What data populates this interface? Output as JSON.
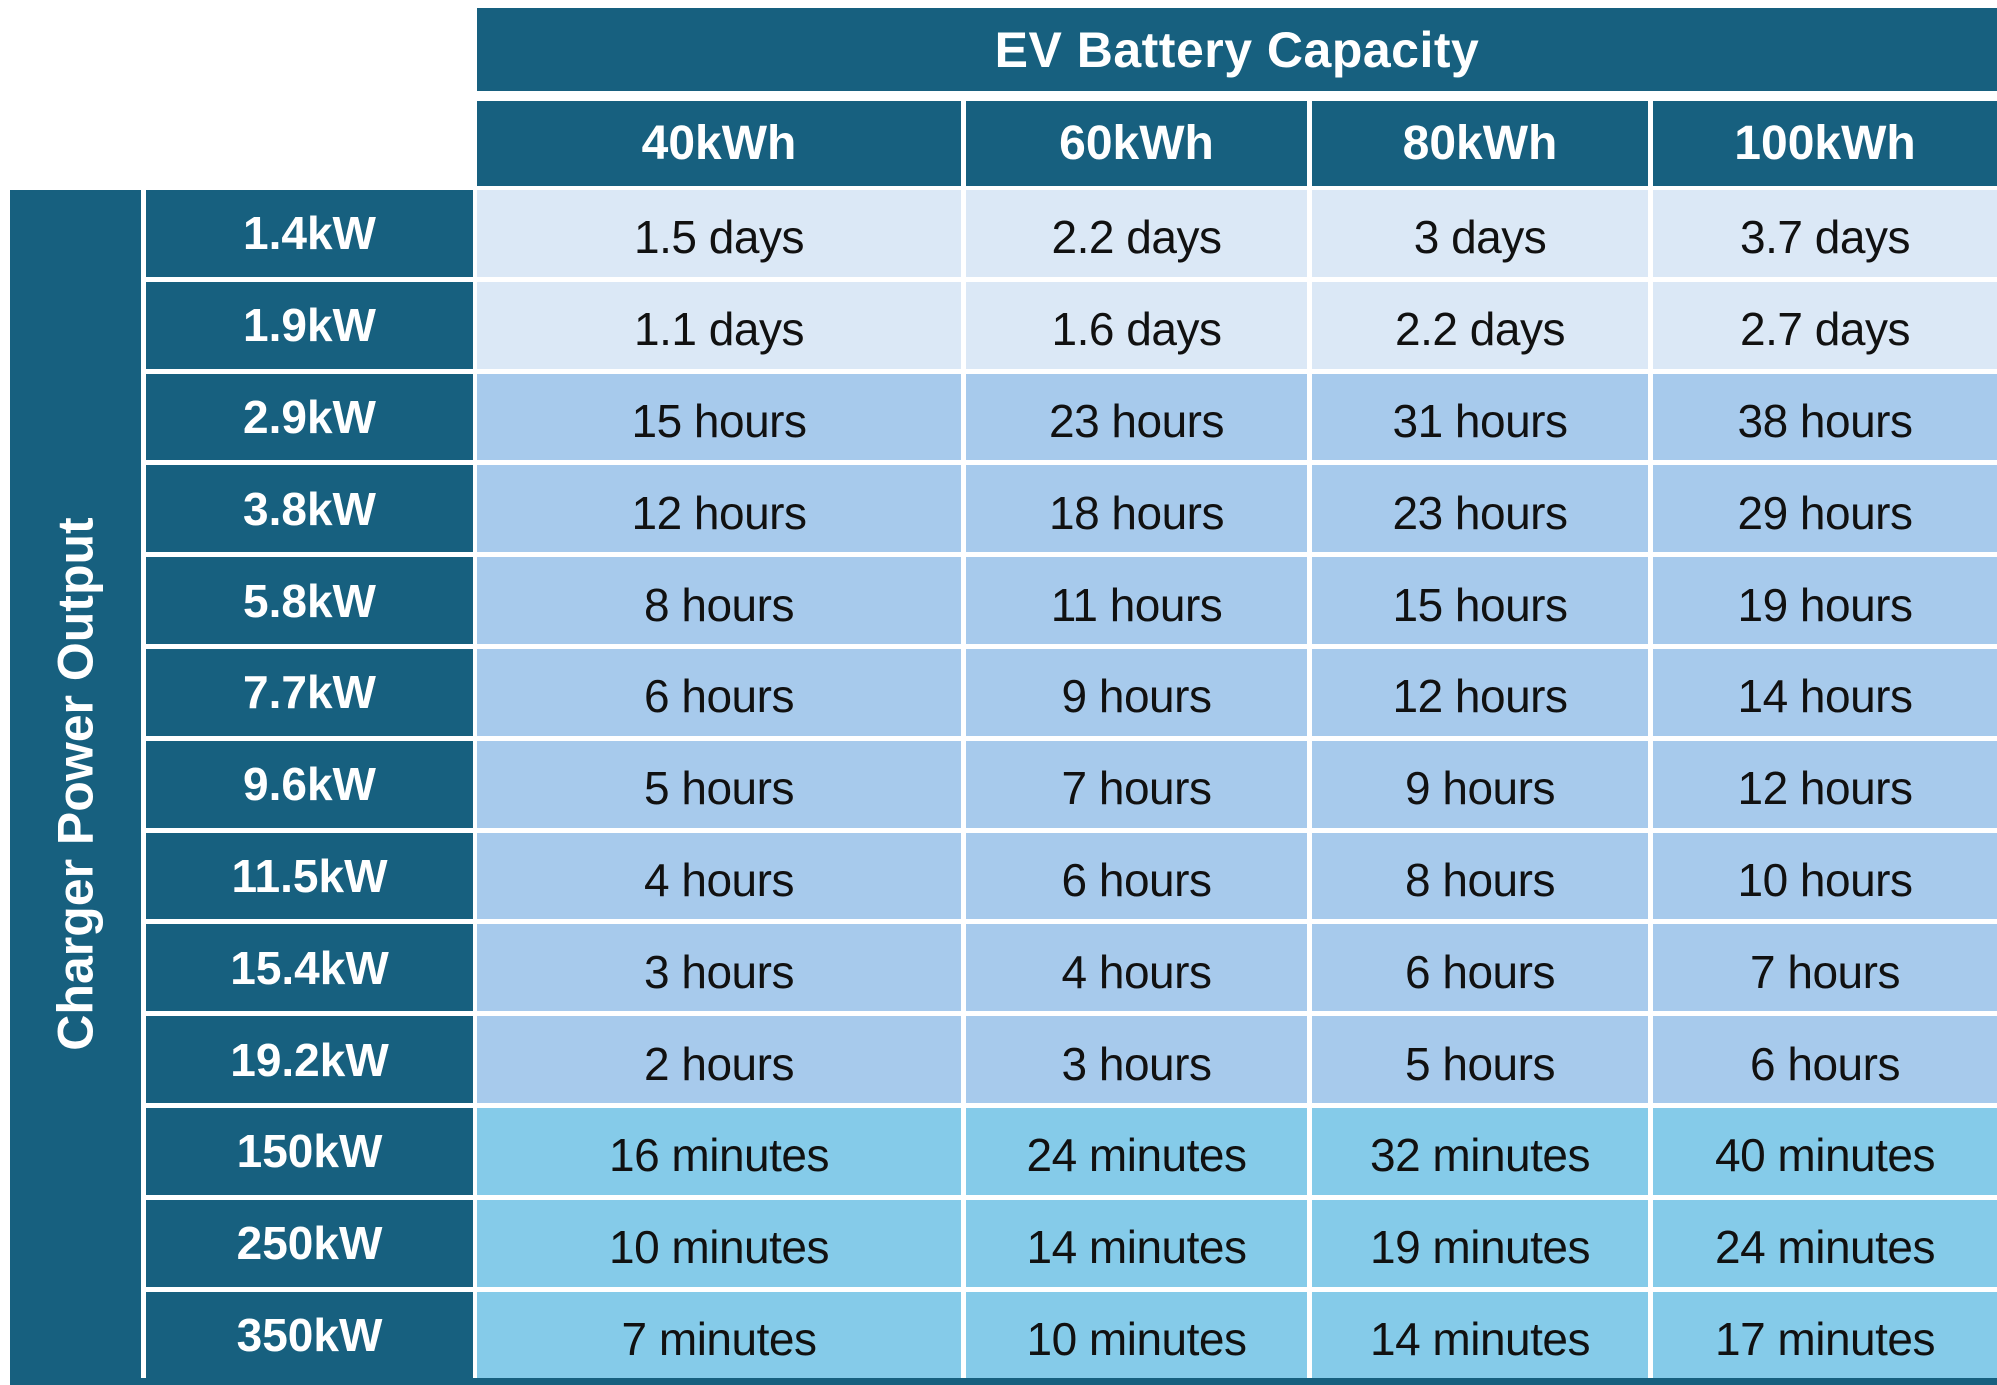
{
  "chart_data": {
    "type": "table",
    "column_group_label": "EV Battery Capacity",
    "row_group_label": "Charger Power Output",
    "columns": [
      "40kWh",
      "60kWh",
      "80kWh",
      "100kWh"
    ],
    "rows": [
      "1.4kW",
      "1.9kW",
      "2.9kW",
      "3.8kW",
      "5.8kW",
      "7.7kW",
      "9.6kW",
      "11.5kW",
      "15.4kW",
      "19.2kW",
      "150kW",
      "250kW",
      "350kW"
    ],
    "values": [
      [
        "1.5 days",
        "2.2 days",
        "3 days",
        "3.7 days"
      ],
      [
        "1.1 days",
        "1.6 days",
        "2.2 days",
        "2.7 days"
      ],
      [
        "15 hours",
        "23 hours",
        "31 hours",
        "38 hours"
      ],
      [
        "12 hours",
        "18 hours",
        "23 hours",
        "29 hours"
      ],
      [
        "8 hours",
        "11 hours",
        "15 hours",
        "19 hours"
      ],
      [
        "6 hours",
        "9 hours",
        "12 hours",
        "14 hours"
      ],
      [
        "5 hours",
        "7 hours",
        "9 hours",
        "12 hours"
      ],
      [
        "4 hours",
        "6 hours",
        "8 hours",
        "10 hours"
      ],
      [
        "3 hours",
        "4 hours",
        "6 hours",
        "7 hours"
      ],
      [
        "2 hours",
        "3 hours",
        "5 hours",
        "6 hours"
      ],
      [
        "16 minutes",
        "24 minutes",
        "32 minutes",
        "40 minutes"
      ],
      [
        "10 minutes",
        "14 minutes",
        "19 minutes",
        "24 minutes"
      ],
      [
        "7 minutes",
        "10 minutes",
        "14 minutes",
        "17 minutes"
      ]
    ]
  },
  "colors": {
    "header_bg": "#17607F",
    "days_bg": "#DBE8F6",
    "hours_bg": "#A7CAEC",
    "minutes_bg": "#85CBE9",
    "text_dark": "#111111",
    "text_light": "#FFFFFF",
    "background": "#FFFFFF"
  }
}
